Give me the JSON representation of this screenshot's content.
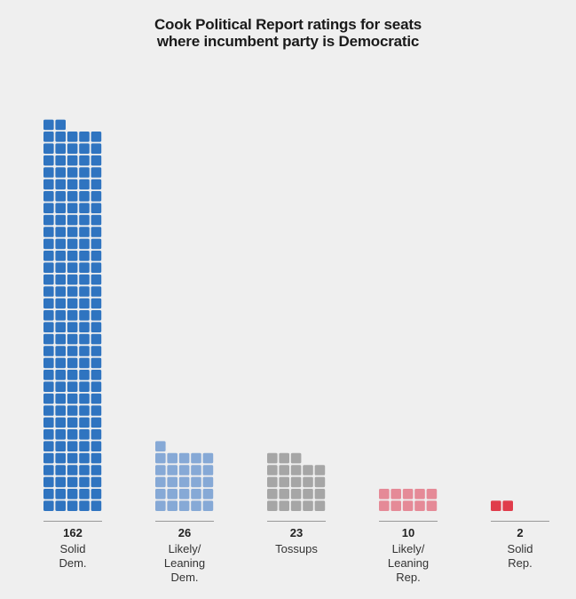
{
  "chart_data": {
    "type": "waffle-bar",
    "title_lines": [
      "Cook Political Report ratings for seats",
      "where incumbent party is Democratic"
    ],
    "categories": [
      {
        "count_label": "162",
        "value": 162,
        "label_lines": [
          "Solid",
          "Dem."
        ],
        "color": "#2f74c0"
      },
      {
        "count_label": "26",
        "value": 26,
        "label_lines": [
          "Likely/",
          "Leaning",
          "Dem."
        ],
        "color": "#86a9d6"
      },
      {
        "count_label": "23",
        "value": 23,
        "label_lines": [
          "Tossups"
        ],
        "color": "#a6a6a6"
      },
      {
        "count_label": "10",
        "value": 10,
        "label_lines": [
          "Likely/",
          "Leaning",
          "Rep."
        ],
        "color": "#e58a97"
      },
      {
        "count_label": "2",
        "value": 2,
        "label_lines": [
          "Solid",
          "Rep."
        ],
        "color": "#e03c4b"
      }
    ],
    "units_per_row": 5,
    "fill_order": "bottom-up, right-to-left",
    "baseline_color": "#999999"
  }
}
